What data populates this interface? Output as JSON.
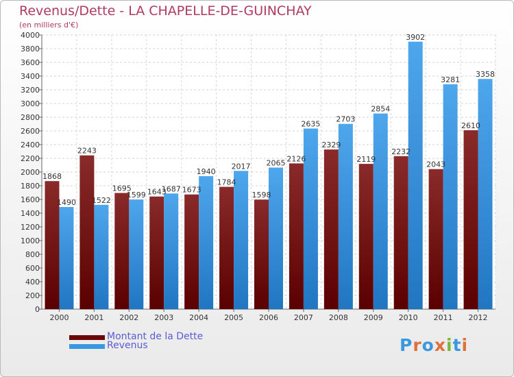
{
  "header": {
    "title": "Revenus/Dette - LA CHAPELLE-DE-GUINCHAY",
    "subtitle": "(en milliers d'€)"
  },
  "chart_data": {
    "type": "bar",
    "title": "Revenus/Dette - LA CHAPELLE-DE-GUINCHAY",
    "ylabel": "(en milliers d'€)",
    "xlabel": "",
    "ylim": [
      0,
      4000
    ],
    "ytick_step": 200,
    "grid": true,
    "legend_position": "bottom-left",
    "categories": [
      "2000",
      "2001",
      "2002",
      "2003",
      "2004",
      "2005",
      "2006",
      "2007",
      "2008",
      "2009",
      "2010",
      "2011",
      "2012"
    ],
    "series": [
      {
        "name": "Montant de la Dette",
        "color": "#7a1212",
        "values": [
          1868,
          2243,
          1695,
          1643,
          1673,
          1784,
          1598,
          2126,
          2329,
          2119,
          2232,
          2043,
          2610
        ]
      },
      {
        "name": "Revenus",
        "color": "#3a98e0",
        "values": [
          1490,
          1522,
          1599,
          1687,
          1940,
          2017,
          2065,
          2635,
          2703,
          2854,
          3902,
          3281,
          3358
        ]
      }
    ]
  },
  "logo": {
    "text": "Proxiti"
  }
}
